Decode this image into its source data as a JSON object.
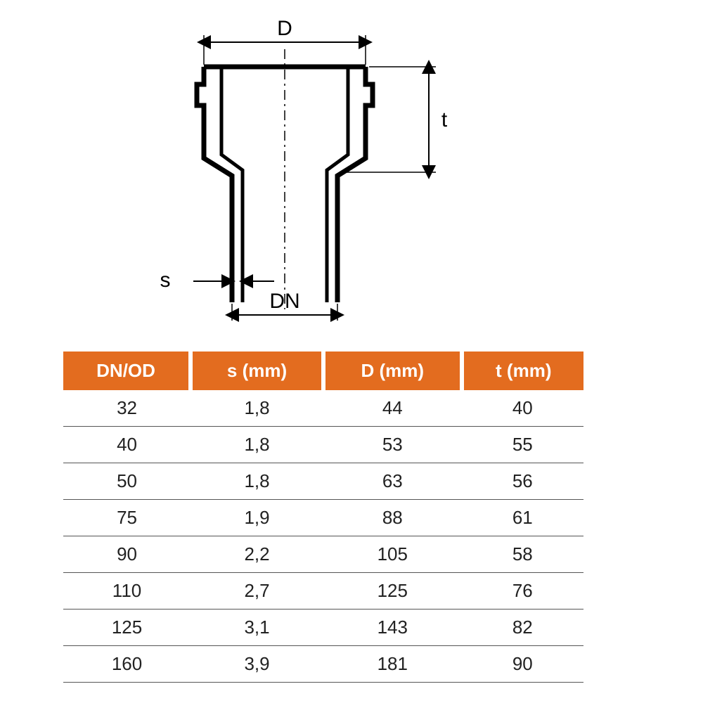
{
  "diagram": {
    "labels": {
      "D": "D",
      "t": "t",
      "s": "s",
      "DN": "DN"
    },
    "stroke": "#000000",
    "stroke_heavy": 7,
    "stroke_dim": 2,
    "dash": "6,6",
    "label_fontsize": 30
  },
  "table": {
    "header_bg": "#e36c1f",
    "header_fg": "#ffffff",
    "row_border": "#555555",
    "cell_fontsize": 26,
    "header_fontsize": 26,
    "columns": [
      "DN/OD",
      "s (mm)",
      "D (mm)",
      "t (mm)"
    ],
    "rows": [
      [
        "32",
        "1,8",
        "44",
        "40"
      ],
      [
        "40",
        "1,8",
        "53",
        "55"
      ],
      [
        "50",
        "1,8",
        "63",
        "56"
      ],
      [
        "75",
        "1,9",
        "88",
        "61"
      ],
      [
        "90",
        "2,2",
        "105",
        "58"
      ],
      [
        "110",
        "2,7",
        "125",
        "76"
      ],
      [
        "125",
        "3,1",
        "143",
        "82"
      ],
      [
        "160",
        "3,9",
        "181",
        "90"
      ]
    ]
  },
  "colors": {
    "background": "#ffffff",
    "text": "#222222"
  }
}
